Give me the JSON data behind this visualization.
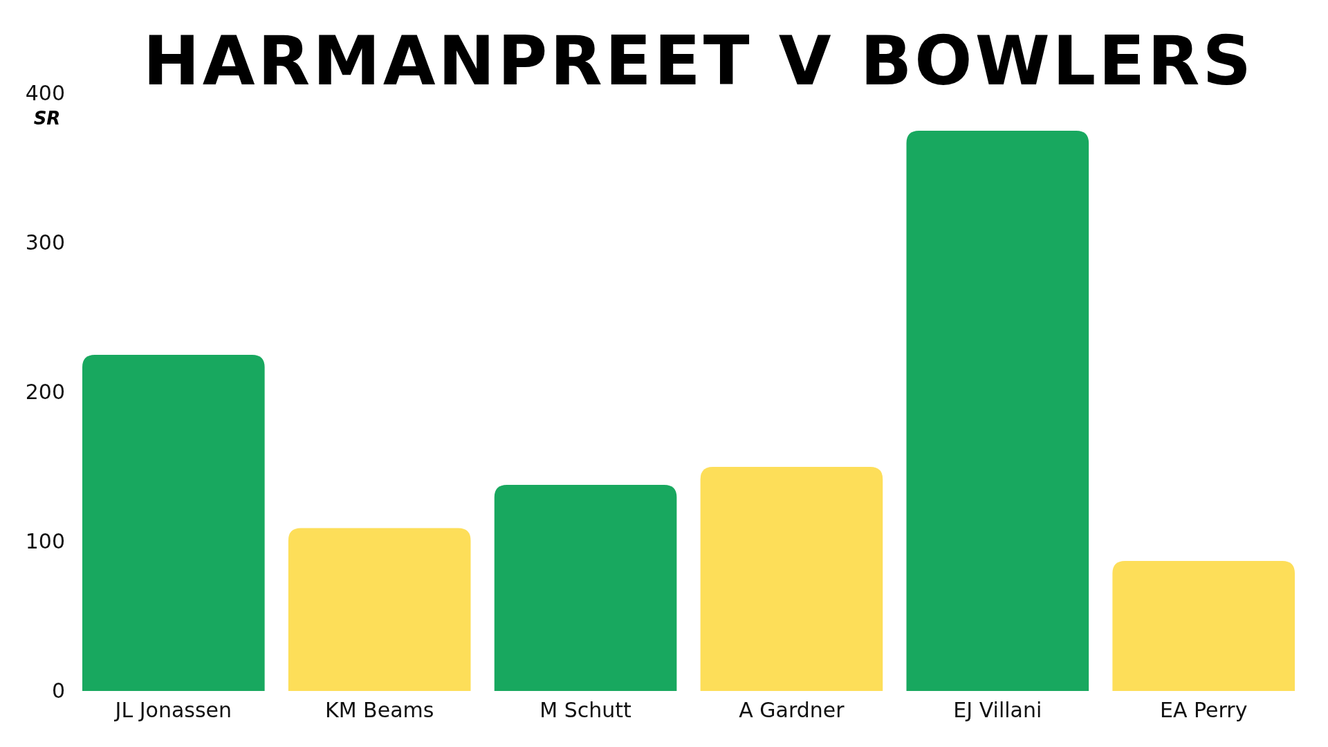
{
  "chart_data": {
    "type": "bar",
    "title": "HARMANPREET V BOWLERS",
    "ylabel": "SR",
    "categories": [
      "JL Jonassen",
      "KM Beams",
      "M Schutt",
      "A Gardner",
      "EJ Villani",
      "EA Perry"
    ],
    "values": [
      225,
      109,
      138,
      150,
      375,
      87
    ],
    "colors": [
      "#18a85f",
      "#fdde59",
      "#18a85f",
      "#fdde59",
      "#18a85f",
      "#fdde59"
    ],
    "ylim": [
      0,
      400
    ],
    "yticks": [
      0,
      100,
      200,
      300,
      400
    ],
    "grid": false
  }
}
